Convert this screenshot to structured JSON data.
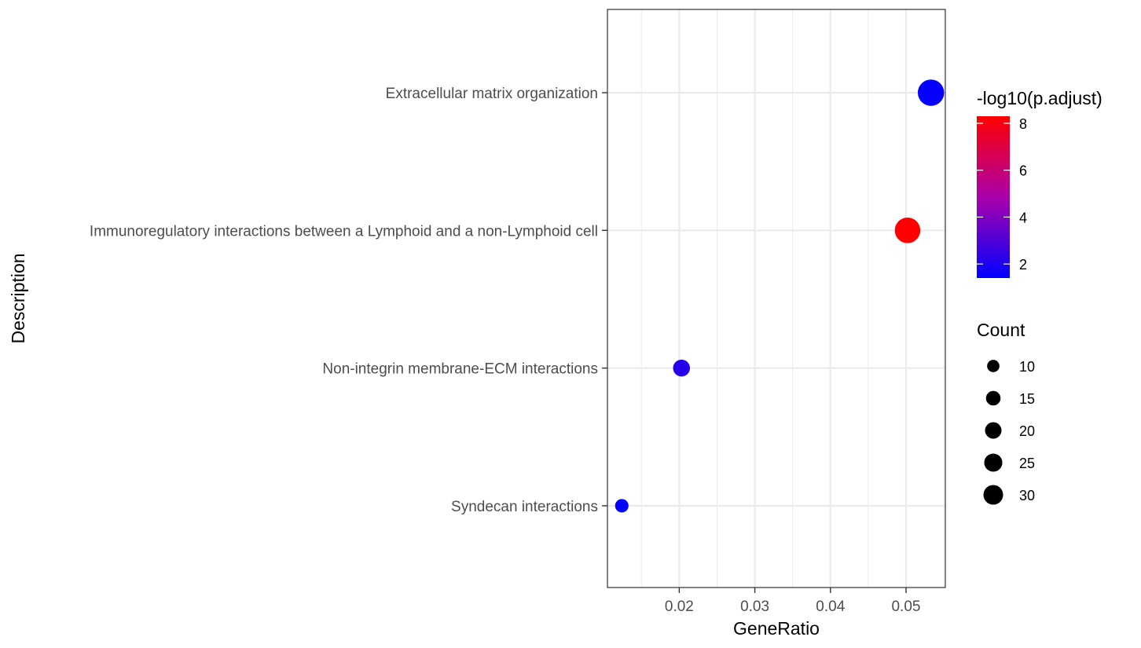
{
  "chart_data": {
    "type": "scatter",
    "xlabel": "GeneRatio",
    "ylabel": "Description",
    "xlim": [
      0.0105,
      0.0552
    ],
    "x_ticks": [
      0.02,
      0.03,
      0.04,
      0.05
    ],
    "x_tick_labels": [
      "0.02",
      "0.03",
      "0.04",
      "0.05"
    ],
    "categories": [
      "Extracellular matrix organization",
      "Immunoregulatory interactions between a Lymphoid and a non-Lymphoid cell",
      "Non-integrin membrane-ECM interactions",
      "Syndecan interactions"
    ],
    "points": [
      {
        "category": "Extracellular matrix organization",
        "x": 0.0533,
        "count": 33,
        "neg_log10_padj": 1.5
      },
      {
        "category": "Immunoregulatory interactions between a Lymphoid and a non-Lymphoid cell",
        "x": 0.0502,
        "count": 31,
        "neg_log10_padj": 8.3
      },
      {
        "category": "Non-integrin membrane-ECM interactions",
        "x": 0.0203,
        "count": 13,
        "neg_log10_padj": 2.2
      },
      {
        "category": "Syndecan interactions",
        "x": 0.0124,
        "count": 8,
        "neg_log10_padj": 1.4
      }
    ],
    "grid": true,
    "color_legend": {
      "title": "-log10(p.adjust)",
      "range": [
        1.4,
        8.3
      ],
      "low_color": "#0000ff",
      "high_color": "#ff0000",
      "ticks": [
        2,
        4,
        6,
        8
      ],
      "tick_labels": [
        "2",
        "4",
        "6",
        "8"
      ]
    },
    "size_legend": {
      "title": "Count",
      "values": [
        10,
        15,
        20,
        25,
        30
      ],
      "labels": [
        "10",
        "15",
        "20",
        "25",
        "30"
      ]
    }
  }
}
